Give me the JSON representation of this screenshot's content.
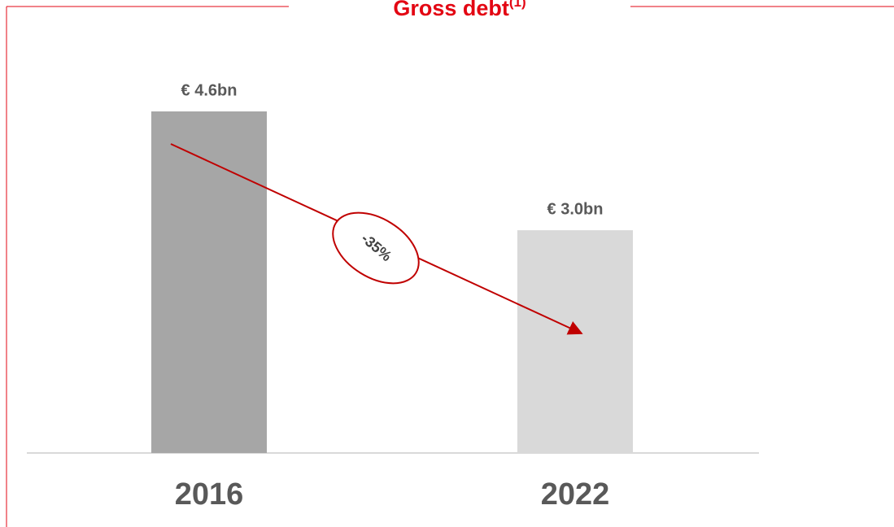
{
  "chart_data": {
    "type": "bar",
    "title": "Gross debt",
    "title_superscript": "(1)",
    "categories": [
      "2016",
      "2022"
    ],
    "values": [
      4.6,
      3.0
    ],
    "value_labels": [
      "€ 4.6bn",
      "€ 3.0bn"
    ],
    "colors": [
      "#a6a6a6",
      "#d9d9d9"
    ],
    "annotation": "-35%"
  }
}
